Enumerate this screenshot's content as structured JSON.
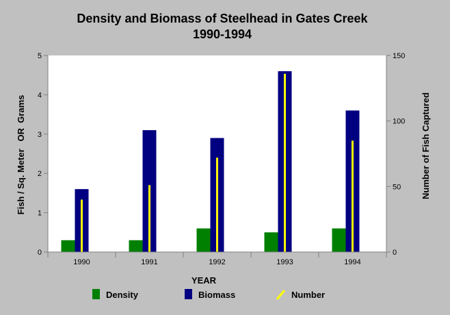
{
  "colors": {
    "background": "#c0c0c0",
    "plot_background": "#ffffff",
    "density": "#008000",
    "biomass": "#000080",
    "number": "#ffff00",
    "axis": "#808080",
    "text": "#000000"
  },
  "chart_data": {
    "type": "bar",
    "title": "Density and Biomass of Steelhead in Gates Creek",
    "subtitle": "1990-1994",
    "xlabel": "YEAR",
    "ylabel": "Fish / Sq. Meter   OR  Grams",
    "y2label": "Number of Fish Captured",
    "categories": [
      "1990",
      "1991",
      "1992",
      "1993",
      "1994"
    ],
    "ylim": [
      0,
      5
    ],
    "y2lim": [
      0,
      150
    ],
    "yticks": [
      "0",
      "1",
      "2",
      "3",
      "4",
      "5"
    ],
    "y2ticks": [
      "0",
      "50",
      "100",
      "150"
    ],
    "grid": false,
    "legend_position": "bottom",
    "series": [
      {
        "name": "Density",
        "axis": "left",
        "values": [
          0.3,
          0.3,
          0.6,
          0.5,
          0.6
        ]
      },
      {
        "name": "Biomass",
        "axis": "left",
        "values": [
          1.6,
          3.1,
          2.9,
          4.6,
          3.6
        ]
      },
      {
        "name": "Number",
        "axis": "right",
        "values": [
          40,
          51,
          72,
          136,
          85
        ]
      }
    ]
  }
}
